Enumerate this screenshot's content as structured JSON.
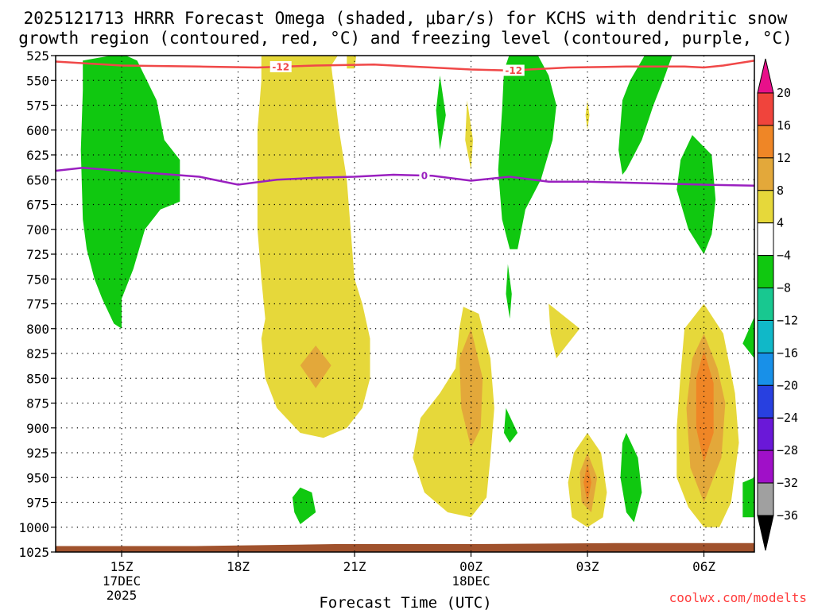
{
  "chart_data": {
    "type": "heatmap",
    "title_line1": "2025121713 HRRR Forecast Omega (shaded, μbar/s) for KCHS with dendritic snow",
    "title_line2": "growth region (contoured, red, °C) and freezing level (contoured, purple, °C)",
    "xlabel": "Forecast Time (UTC)",
    "credit": "coolwx.com/modelts",
    "y_levels": [
      525,
      550,
      575,
      600,
      625,
      650,
      675,
      700,
      725,
      750,
      775,
      800,
      825,
      850,
      875,
      900,
      925,
      950,
      975,
      1000,
      1025
    ],
    "y_range": [
      525,
      1025
    ],
    "x_range_hours": [
      13.3,
      31.3
    ],
    "x_ticks": [
      {
        "hour": 15,
        "label": "15Z",
        "sub1": "17DEC",
        "sub2": "2025"
      },
      {
        "hour": 18,
        "label": "18Z",
        "sub1": "",
        "sub2": ""
      },
      {
        "hour": 21,
        "label": "21Z",
        "sub1": "",
        "sub2": ""
      },
      {
        "hour": 24,
        "label": "00Z",
        "sub1": "18DEC",
        "sub2": ""
      },
      {
        "hour": 27,
        "label": "03Z",
        "sub1": "",
        "sub2": ""
      },
      {
        "hour": 30,
        "label": "06Z",
        "sub1": "",
        "sub2": ""
      }
    ],
    "colorbar": {
      "ticks": [
        "20",
        "16",
        "12",
        "8",
        "4",
        "−4",
        "−8",
        "−12",
        "−16",
        "−20",
        "−24",
        "−28",
        "−32",
        "−36"
      ],
      "bins": [
        {
          "range": ">20",
          "color": "#e8108a"
        },
        {
          "range": "16 to 20",
          "color": "#f0443c"
        },
        {
          "range": "12 to 16",
          "color": "#ef8626"
        },
        {
          "range": "8 to 12",
          "color": "#e3a83a"
        },
        {
          "range": "4 to 8",
          "color": "#e6d83a"
        },
        {
          "range": "-4 to 4",
          "color": "#ffffff"
        },
        {
          "range": "-8 to -4",
          "color": "#10c810"
        },
        {
          "range": "-12 to -8",
          "color": "#18c890"
        },
        {
          "range": "-16 to -12",
          "color": "#10b8c8"
        },
        {
          "range": "-20 to -16",
          "color": "#1890e8"
        },
        {
          "range": "-24 to -20",
          "color": "#2840e0"
        },
        {
          "range": "-28 to -24",
          "color": "#6a18d8"
        },
        {
          "range": "-32 to -28",
          "color": "#a010c8"
        },
        {
          "range": "-36 to -32",
          "color": "#a0a0a0"
        },
        {
          "range": "<-36",
          "color": "#000000"
        }
      ]
    },
    "dendritic_contour": {
      "label": "-12",
      "color": "#f04848",
      "points": [
        [
          13.3,
          531
        ],
        [
          15.0,
          535
        ],
        [
          17.0,
          536
        ],
        [
          18.5,
          537
        ],
        [
          20.0,
          535
        ],
        [
          21.5,
          534
        ],
        [
          23.0,
          537
        ],
        [
          24.0,
          539
        ],
        [
          25.0,
          540
        ],
        [
          26.5,
          537
        ],
        [
          28.0,
          536
        ],
        [
          29.5,
          536
        ],
        [
          30.0,
          537
        ],
        [
          30.5,
          535
        ],
        [
          31.3,
          530
        ]
      ],
      "label_hours": [
        19.1,
        25.1
      ]
    },
    "freezing_contour": {
      "label": "0",
      "color": "#9a20c0",
      "points": [
        [
          13.3,
          641
        ],
        [
          14.0,
          638
        ],
        [
          15.0,
          641
        ],
        [
          16.0,
          644
        ],
        [
          17.0,
          647
        ],
        [
          18.0,
          655
        ],
        [
          19.0,
          650
        ],
        [
          20.0,
          648
        ],
        [
          21.0,
          647
        ],
        [
          22.0,
          645
        ],
        [
          23.0,
          646
        ],
        [
          24.0,
          651
        ],
        [
          25.0,
          647
        ],
        [
          26.0,
          652
        ],
        [
          27.0,
          652
        ],
        [
          28.0,
          653
        ],
        [
          29.0,
          654
        ],
        [
          30.0,
          655
        ],
        [
          31.3,
          656
        ]
      ],
      "label_hours": [
        22.8
      ]
    },
    "omega_regions": [
      {
        "bin": "-8 to -4",
        "color": "#10c810",
        "points": [
          [
            14.0,
            530
          ],
          [
            15.0,
            523
          ],
          [
            15.4,
            530
          ],
          [
            15.9,
            570
          ],
          [
            16.1,
            610
          ],
          [
            16.5,
            630
          ],
          [
            16.5,
            672
          ],
          [
            16.0,
            680
          ],
          [
            15.6,
            700
          ],
          [
            15.3,
            740
          ],
          [
            15.0,
            770
          ],
          [
            15.0,
            800
          ],
          [
            14.8,
            795
          ],
          [
            14.5,
            770
          ],
          [
            14.3,
            750
          ],
          [
            14.1,
            720
          ],
          [
            14.0,
            690
          ],
          [
            13.95,
            620
          ],
          [
            14.0,
            560
          ]
        ]
      },
      {
        "bin": "4 to 8",
        "color": "#e6d83a",
        "points": [
          [
            18.6,
            523
          ],
          [
            20.6,
            523
          ],
          [
            20.4,
            535
          ],
          [
            20.6,
            600
          ],
          [
            20.8,
            650
          ],
          [
            20.9,
            700
          ],
          [
            21.0,
            750
          ],
          [
            21.2,
            775
          ],
          [
            21.4,
            810
          ],
          [
            21.4,
            850
          ],
          [
            21.2,
            880
          ],
          [
            20.8,
            900
          ],
          [
            20.2,
            910
          ],
          [
            19.6,
            905
          ],
          [
            19.0,
            880
          ],
          [
            18.7,
            850
          ],
          [
            18.6,
            810
          ],
          [
            18.7,
            790
          ],
          [
            18.6,
            750
          ],
          [
            18.5,
            700
          ],
          [
            18.5,
            600
          ],
          [
            18.6,
            550
          ]
        ]
      },
      {
        "bin": "8 to 12",
        "color": "#e3a83a",
        "points": [
          [
            20.0,
            817
          ],
          [
            20.4,
            837
          ],
          [
            20.0,
            860
          ],
          [
            19.6,
            837
          ]
        ]
      },
      {
        "bin": "4 to 8",
        "color": "#e6d83a",
        "points": [
          [
            20.8,
            523
          ],
          [
            21.05,
            523
          ],
          [
            21.0,
            538
          ],
          [
            20.8,
            538
          ]
        ]
      },
      {
        "bin": "-8 to -4",
        "color": "#10c810",
        "points": [
          [
            23.2,
            545
          ],
          [
            23.35,
            585
          ],
          [
            23.2,
            620
          ],
          [
            23.1,
            580
          ]
        ]
      },
      {
        "bin": "4 to 8",
        "color": "#e6d83a",
        "points": [
          [
            23.9,
            570
          ],
          [
            24.05,
            610
          ],
          [
            24.0,
            640
          ],
          [
            23.85,
            610
          ]
        ]
      },
      {
        "bin": "4 to 8",
        "color": "#e6d83a",
        "points": [
          [
            23.8,
            778
          ],
          [
            24.2,
            785
          ],
          [
            24.5,
            830
          ],
          [
            24.6,
            880
          ],
          [
            24.5,
            930
          ],
          [
            24.4,
            970
          ],
          [
            24.0,
            990
          ],
          [
            23.4,
            985
          ],
          [
            22.8,
            965
          ],
          [
            22.5,
            930
          ],
          [
            22.7,
            890
          ],
          [
            23.2,
            865
          ],
          [
            23.6,
            840
          ],
          [
            23.7,
            800
          ]
        ]
      },
      {
        "bin": "8 to 12",
        "color": "#e3a83a",
        "points": [
          [
            24.0,
            800
          ],
          [
            24.3,
            850
          ],
          [
            24.25,
            900
          ],
          [
            24.0,
            920
          ],
          [
            23.75,
            880
          ],
          [
            23.7,
            830
          ]
        ]
      },
      {
        "bin": "-8 to -4",
        "color": "#10c810",
        "points": [
          [
            25.0,
            523
          ],
          [
            25.7,
            523
          ],
          [
            26.0,
            545
          ],
          [
            26.2,
            575
          ],
          [
            26.1,
            610
          ],
          [
            25.8,
            650
          ],
          [
            25.4,
            680
          ],
          [
            25.2,
            720
          ],
          [
            25.0,
            720
          ],
          [
            24.8,
            690
          ],
          [
            24.7,
            640
          ],
          [
            24.8,
            580
          ],
          [
            24.85,
            540
          ]
        ]
      },
      {
        "bin": "-8 to -4",
        "color": "#10c810",
        "points": [
          [
            24.95,
            735
          ],
          [
            25.05,
            765
          ],
          [
            25.0,
            790
          ],
          [
            24.9,
            765
          ]
        ]
      },
      {
        "bin": "-8 to -4",
        "color": "#10c810",
        "points": [
          [
            24.9,
            880
          ],
          [
            25.2,
            905
          ],
          [
            25.0,
            915
          ],
          [
            24.85,
            905
          ]
        ]
      },
      {
        "bin": "-8 to -4",
        "color": "#10c810",
        "points": [
          [
            28.5,
            523
          ],
          [
            29.2,
            523
          ],
          [
            29.0,
            545
          ],
          [
            28.7,
            575
          ],
          [
            28.4,
            610
          ],
          [
            28.0,
            640
          ],
          [
            27.9,
            645
          ],
          [
            27.8,
            620
          ],
          [
            27.9,
            570
          ],
          [
            28.1,
            550
          ]
        ]
      },
      {
        "bin": "-8 to -4",
        "color": "#10c810",
        "points": [
          [
            29.7,
            605
          ],
          [
            30.2,
            625
          ],
          [
            30.3,
            670
          ],
          [
            30.2,
            705
          ],
          [
            30.0,
            725
          ],
          [
            29.6,
            700
          ],
          [
            29.3,
            660
          ],
          [
            29.4,
            630
          ]
        ]
      },
      {
        "bin": "4 to 8",
        "color": "#e6d83a",
        "points": [
          [
            27.0,
            570
          ],
          [
            27.05,
            585
          ],
          [
            27.0,
            600
          ],
          [
            26.95,
            585
          ]
        ]
      },
      {
        "bin": "4 to 8",
        "color": "#e6d83a",
        "points": [
          [
            26.0,
            775
          ],
          [
            26.8,
            800
          ],
          [
            26.2,
            830
          ],
          [
            26.05,
            805
          ]
        ]
      },
      {
        "bin": "4 to 8",
        "color": "#e6d83a",
        "points": [
          [
            27.0,
            905
          ],
          [
            27.35,
            925
          ],
          [
            27.5,
            965
          ],
          [
            27.4,
            990
          ],
          [
            27.0,
            1000
          ],
          [
            26.6,
            990
          ],
          [
            26.5,
            955
          ],
          [
            26.65,
            925
          ]
        ]
      },
      {
        "bin": "8 to 12",
        "color": "#e3a83a",
        "points": [
          [
            27.0,
            925
          ],
          [
            27.25,
            950
          ],
          [
            27.1,
            985
          ],
          [
            26.85,
            975
          ],
          [
            26.8,
            945
          ]
        ]
      },
      {
        "bin": "12 to 16",
        "color": "#ef8626",
        "points": [
          [
            27.0,
            935
          ],
          [
            27.1,
            955
          ],
          [
            27.0,
            975
          ],
          [
            26.9,
            955
          ]
        ]
      },
      {
        "bin": "-8 to -4",
        "color": "#10c810",
        "points": [
          [
            28.0,
            905
          ],
          [
            28.3,
            930
          ],
          [
            28.4,
            965
          ],
          [
            28.2,
            995
          ],
          [
            28.0,
            985
          ],
          [
            27.85,
            950
          ],
          [
            27.9,
            915
          ]
        ]
      },
      {
        "bin": "4 to 8",
        "color": "#e6d83a",
        "points": [
          [
            30.0,
            775
          ],
          [
            30.5,
            805
          ],
          [
            30.8,
            865
          ],
          [
            30.9,
            915
          ],
          [
            30.7,
            975
          ],
          [
            30.4,
            1000
          ],
          [
            30.0,
            1000
          ],
          [
            29.6,
            980
          ],
          [
            29.3,
            950
          ],
          [
            29.3,
            900
          ],
          [
            29.4,
            845
          ],
          [
            29.5,
            800
          ]
        ]
      },
      {
        "bin": "8 to 12",
        "color": "#e3a83a",
        "points": [
          [
            30.0,
            805
          ],
          [
            30.35,
            840
          ],
          [
            30.55,
            875
          ],
          [
            30.45,
            930
          ],
          [
            30.0,
            975
          ],
          [
            29.65,
            940
          ],
          [
            29.55,
            880
          ],
          [
            29.7,
            830
          ]
        ]
      },
      {
        "bin": "12 to 16",
        "color": "#ef8626",
        "points": [
          [
            30.0,
            822
          ],
          [
            30.25,
            855
          ],
          [
            30.25,
            905
          ],
          [
            30.0,
            935
          ],
          [
            29.8,
            900
          ],
          [
            29.8,
            850
          ]
        ]
      },
      {
        "bin": "-8 to -4",
        "color": "#10c810",
        "points": [
          [
            31.3,
            788
          ],
          [
            31.3,
            830
          ],
          [
            31.0,
            815
          ]
        ]
      },
      {
        "bin": "-8 to -4",
        "color": "#10c810",
        "points": [
          [
            31.0,
            955
          ],
          [
            31.3,
            950
          ],
          [
            31.3,
            990
          ],
          [
            31.0,
            990
          ]
        ]
      },
      {
        "bin": "-8 to -4",
        "color": "#10c810",
        "points": [
          [
            19.6,
            960
          ],
          [
            19.9,
            965
          ],
          [
            20.0,
            985
          ],
          [
            19.6,
            997
          ],
          [
            19.45,
            985
          ],
          [
            19.4,
            970
          ]
        ]
      }
    ],
    "surface_region": {
      "color": "#a0522d",
      "top_levels": [
        1019,
        1019,
        1017,
        1017,
        1016,
        1016
      ]
    }
  }
}
